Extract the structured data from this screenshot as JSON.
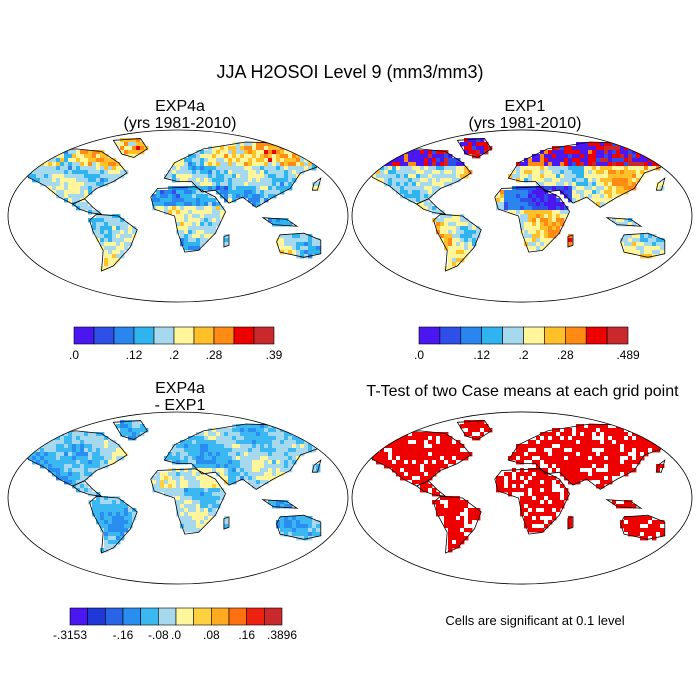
{
  "title": "JJA H2OSOI Level 9 (mm3/mm3)",
  "panels": [
    {
      "title": "EXP4a",
      "subtitle": "(yrs 1981-2010)"
    },
    {
      "title": "EXP1",
      "subtitle": "(yrs 1981-2010)"
    },
    {
      "title": "EXP4a",
      "subtitle": "- EXP1"
    },
    {
      "title": "T-Test of two Case means at each grid point",
      "subtitle": ""
    }
  ],
  "colorbars": [
    {
      "colors": [
        "#4a17f0",
        "#2f50e8",
        "#2a85ee",
        "#2fb4ef",
        "#a6d8ee",
        "#fff59a",
        "#ffc02a",
        "#ff8a14",
        "#ee0000",
        "#c9292c"
      ],
      "tick_labels": [
        ".0",
        ".12",
        ".2",
        ".28",
        ".39"
      ]
    },
    {
      "colors": [
        "#4a17f0",
        "#2f50e8",
        "#2a85ee",
        "#2fb4ef",
        "#a6d8ee",
        "#fff59a",
        "#ffc02a",
        "#ff8a14",
        "#ee0000",
        "#c9292c"
      ],
      "tick_labels": [
        ".0",
        ".12",
        ".2",
        ".28",
        ".489"
      ]
    },
    {
      "colors": [
        "#4a17f0",
        "#2038d8",
        "#2a64e6",
        "#2a8ef0",
        "#3bb8f2",
        "#a6d8ee",
        "#fff59a",
        "#ffd040",
        "#ffaa20",
        "#ff7010",
        "#ee2010",
        "#c9292c"
      ],
      "tick_labels": [
        "-.3153",
        "-.16",
        "-.08",
        ".0",
        ".08",
        ".16",
        ".3896"
      ]
    }
  ],
  "note": "Cells are significant at 0.1 level",
  "colors": {
    "significant": "#ee0000",
    "coast": "#000000"
  },
  "chart_data": [
    {
      "type": "heatmap",
      "title": "EXP4a",
      "subtitle": "(yrs 1981-2010)",
      "field": "JJA H2OSOI Level 9",
      "units": "mm3/mm3",
      "range": [
        0.0,
        0.39
      ]
    },
    {
      "type": "heatmap",
      "title": "EXP1",
      "subtitle": "(yrs 1981-2010)",
      "field": "JJA H2OSOI Level 9",
      "units": "mm3/mm3",
      "range": [
        0.0,
        0.489
      ]
    },
    {
      "type": "heatmap",
      "title": "EXP4a",
      "subtitle": "- EXP1",
      "field": "JJA H2OSOI Level 9",
      "units": "mm3/mm3",
      "range": [
        -0.3153,
        0.3896
      ]
    },
    {
      "type": "heatmap",
      "title": "T-Test of two Case means at each grid point",
      "significance_level": 0.1
    }
  ]
}
